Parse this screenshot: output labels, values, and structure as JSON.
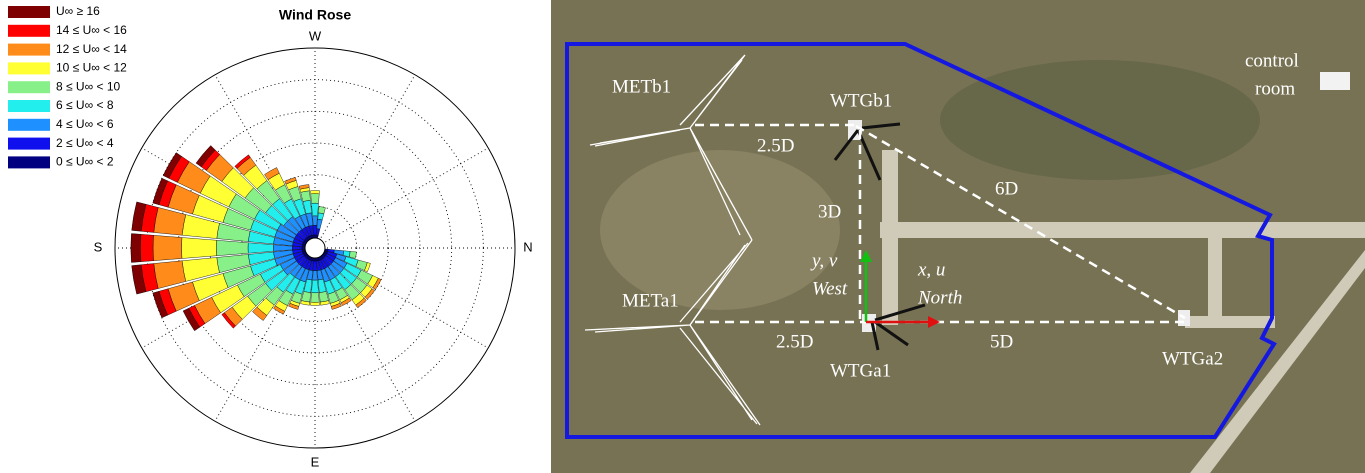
{
  "chart_data": {
    "type": "windrose",
    "title": "Wind Rose",
    "compass": {
      "top": "W",
      "right": "N",
      "bottom": "E",
      "left": "S"
    },
    "directions": [
      10,
      20,
      30,
      40,
      50,
      60,
      70,
      80,
      90,
      100,
      110,
      120,
      130,
      140,
      150,
      160,
      170,
      180,
      190,
      200,
      210,
      220,
      230,
      240,
      250,
      260,
      270,
      280
    ],
    "rlim": [
      0,
      6
    ],
    "rticks": [
      1,
      2,
      3,
      4,
      5,
      6
    ],
    "series": [
      {
        "name": "U∞ ≥ 16",
        "color": "#7f0000",
        "values": [
          0,
          0,
          0,
          0,
          0,
          0,
          0,
          0,
          0,
          0,
          0,
          0,
          0,
          0,
          0.2,
          0.2,
          0.3,
          0.3,
          0.3,
          0.2,
          0.2,
          0.2,
          0,
          0,
          0,
          0,
          0,
          0
        ]
      },
      {
        "name": "14 ≤ U∞ < 16",
        "color": "#ff0000",
        "values": [
          0,
          0,
          0,
          0,
          0,
          0,
          0,
          0,
          0,
          0,
          0,
          0,
          0,
          0.1,
          0.2,
          0.3,
          0.4,
          0.4,
          0.4,
          0.3,
          0.3,
          0.2,
          0.1,
          0,
          0,
          0,
          0,
          0
        ]
      },
      {
        "name": "12 ≤ U∞ < 14",
        "color": "#ff8c1a",
        "values": [
          0,
          0,
          0.1,
          0.1,
          0.1,
          0.1,
          0.1,
          0,
          0,
          0,
          0.1,
          0.1,
          0.2,
          0.3,
          0.6,
          0.8,
          0.9,
          0.9,
          0.9,
          0.8,
          0.8,
          0.6,
          0.3,
          0.2,
          0.1,
          0.1,
          0,
          0
        ]
      },
      {
        "name": "10 ≤ U∞ < 12",
        "color": "#ffff33",
        "values": [
          0,
          0.1,
          0.2,
          0.2,
          0.2,
          0.1,
          0.1,
          0.1,
          0.1,
          0.1,
          0.1,
          0.2,
          0.4,
          0.6,
          0.9,
          1.0,
          1.1,
          1.1,
          1.1,
          1.0,
          1.0,
          0.9,
          0.6,
          0.4,
          0.2,
          0.1,
          0.1,
          0
        ]
      },
      {
        "name": "8 ≤ U∞ < 10",
        "color": "#88f088",
        "values": [
          0.2,
          0.3,
          0.4,
          0.4,
          0.4,
          0.3,
          0.3,
          0.3,
          0.3,
          0.3,
          0.3,
          0.4,
          0.5,
          0.7,
          0.8,
          0.9,
          1.0,
          1.0,
          1.0,
          0.9,
          0.9,
          0.8,
          0.7,
          0.5,
          0.4,
          0.3,
          0.3,
          0.2
        ]
      },
      {
        "name": "6 ≤ U∞ < 8",
        "color": "#22eeee",
        "values": [
          0.2,
          0.4,
          0.5,
          0.5,
          0.5,
          0.4,
          0.4,
          0.4,
          0.4,
          0.4,
          0.4,
          0.5,
          0.6,
          0.7,
          0.7,
          0.8,
          0.8,
          0.8,
          0.8,
          0.8,
          0.8,
          0.7,
          0.7,
          0.6,
          0.5,
          0.4,
          0.4,
          0.2
        ]
      },
      {
        "name": "4 ≤ U∞ < 6",
        "color": "#1e90ff",
        "values": [
          0.3,
          0.3,
          0.4,
          0.4,
          0.4,
          0.4,
          0.4,
          0.3,
          0.3,
          0.3,
          0.4,
          0.4,
          0.4,
          0.5,
          0.5,
          0.6,
          0.6,
          0.6,
          0.6,
          0.6,
          0.6,
          0.5,
          0.5,
          0.4,
          0.4,
          0.4,
          0.3,
          0.3
        ]
      },
      {
        "name": "2 ≤ U∞ < 4",
        "color": "#1010ee",
        "values": [
          0.2,
          0.3,
          0.3,
          0.3,
          0.3,
          0.3,
          0.3,
          0.3,
          0.3,
          0.3,
          0.3,
          0.3,
          0.3,
          0.3,
          0.3,
          0.3,
          0.3,
          0.3,
          0.3,
          0.3,
          0.3,
          0.3,
          0.3,
          0.3,
          0.3,
          0.3,
          0.3,
          0.2
        ]
      },
      {
        "name": "0 ≤ U∞ < 2",
        "color": "#000080",
        "values": [
          0.1,
          0.1,
          0.1,
          0.1,
          0.1,
          0.1,
          0.1,
          0.1,
          0.1,
          0.1,
          0.1,
          0.1,
          0.1,
          0.1,
          0.1,
          0.1,
          0.1,
          0.1,
          0.1,
          0.1,
          0.1,
          0.1,
          0.1,
          0.1,
          0.1,
          0.1,
          0.1,
          0.1
        ]
      }
    ]
  },
  "map": {
    "labels": [
      "METb1",
      "WTGb1",
      "2.5D",
      "6D",
      "3D",
      "y, v",
      "West",
      "x, u",
      "North",
      "METa1",
      "2.5D",
      "5D",
      "WTGa1",
      "WTGa2",
      "control",
      "room"
    ]
  }
}
